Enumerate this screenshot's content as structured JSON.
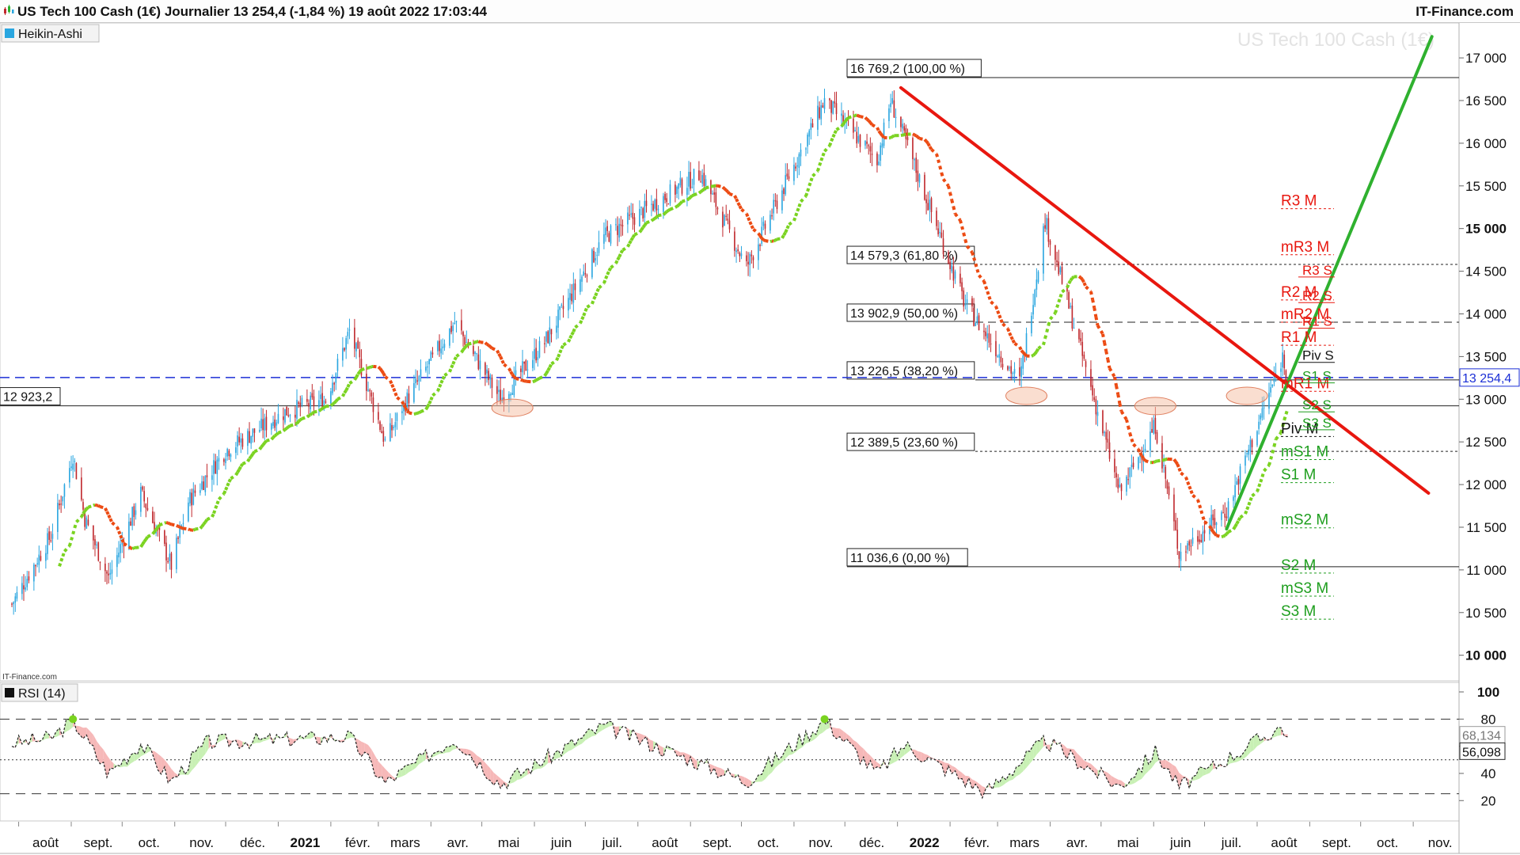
{
  "header": {
    "title": "US Tech 100 Cash (1€) Journalier 13 254,4 (-1,84 %) 19 août 2022 17:03:44",
    "brand": "IT-Finance.com"
  },
  "panels": {
    "price_legend": "Heikin-Ashi",
    "watermark": "US Tech 100 Cash (1€)",
    "rsi_legend": "RSI (14)",
    "source": "IT-Finance.com",
    "crosshair_label": "12 923,2",
    "last_price_label": "13 254,4"
  },
  "colors": {
    "up": "#2aa6e0",
    "down": "#c0282d",
    "support": "#1e9e1e",
    "resistance": "#e8170f",
    "trend_green": "#2fb12f",
    "trend_red": "#e8170f",
    "last_price": "#1b2fd6",
    "ma_green": "#7ad320",
    "ma_red": "#ec4a12",
    "rsi_pos": "#c8f0b4",
    "rsi_neg": "#f6b8b8"
  },
  "chart_data": [
    {
      "type": "candlestick",
      "name": "Heikin-Ashi",
      "ylim": [
        9700,
        17400
      ],
      "y_ticks": [
        10000,
        10500,
        11000,
        11500,
        12000,
        12500,
        13000,
        13500,
        14000,
        14500,
        15000,
        15500,
        16000,
        16500,
        17000
      ],
      "y_tick_labels": [
        "10 000",
        "10 500",
        "11 000",
        "11 500",
        "12 000",
        "12 500",
        "13 000",
        "13 500",
        "14 000",
        "14 500",
        "15 000",
        "15 500",
        "16 000",
        "16 500",
        "17 000"
      ],
      "bold_ticks": [
        10000,
        15000
      ],
      "x_axis_labels": [
        {
          "label": "août",
          "date": "2020-08-01"
        },
        {
          "label": "sept.",
          "date": "2020-09-01"
        },
        {
          "label": "oct.",
          "date": "2020-10-01"
        },
        {
          "label": "nov.",
          "date": "2020-11-01"
        },
        {
          "label": "déc.",
          "date": "2020-12-01"
        },
        {
          "label": "2021",
          "date": "2021-01-01",
          "bold": true
        },
        {
          "label": "févr.",
          "date": "2021-02-01"
        },
        {
          "label": "mars",
          "date": "2021-03-01"
        },
        {
          "label": "avr.",
          "date": "2021-04-01"
        },
        {
          "label": "mai",
          "date": "2021-05-01"
        },
        {
          "label": "juin",
          "date": "2021-06-01"
        },
        {
          "label": "juil.",
          "date": "2021-07-01"
        },
        {
          "label": "août",
          "date": "2021-08-01"
        },
        {
          "label": "sept.",
          "date": "2021-09-01"
        },
        {
          "label": "oct.",
          "date": "2021-10-01"
        },
        {
          "label": "nov.",
          "date": "2021-11-01"
        },
        {
          "label": "déc.",
          "date": "2021-12-01"
        },
        {
          "label": "2022",
          "date": "2022-01-01",
          "bold": true
        },
        {
          "label": "févr.",
          "date": "2022-02-01"
        },
        {
          "label": "mars",
          "date": "2022-03-01"
        },
        {
          "label": "avr.",
          "date": "2022-04-01"
        },
        {
          "label": "mai",
          "date": "2022-05-01"
        },
        {
          "label": "juin",
          "date": "2022-06-01"
        },
        {
          "label": "juil.",
          "date": "2022-07-01"
        },
        {
          "label": "août",
          "date": "2022-08-01"
        },
        {
          "label": "sept.",
          "date": "2022-09-01"
        },
        {
          "label": "oct.",
          "date": "2022-10-01"
        },
        {
          "label": "nov.",
          "date": "2022-11-01"
        }
      ],
      "price_path": [
        {
          "date": "2020-07-28",
          "close": 10600
        },
        {
          "date": "2020-08-20",
          "close": 11400
        },
        {
          "date": "2020-09-02",
          "close": 12350
        },
        {
          "date": "2020-09-09",
          "close": 11600
        },
        {
          "date": "2020-09-23",
          "close": 10900
        },
        {
          "date": "2020-10-12",
          "close": 11900
        },
        {
          "date": "2020-10-30",
          "close": 11050
        },
        {
          "date": "2020-11-09",
          "close": 11800
        },
        {
          "date": "2020-12-01",
          "close": 12400
        },
        {
          "date": "2021-01-05",
          "close": 12850
        },
        {
          "date": "2021-01-29",
          "close": 13000
        },
        {
          "date": "2021-02-12",
          "close": 13800
        },
        {
          "date": "2021-03-05",
          "close": 12500
        },
        {
          "date": "2021-03-18",
          "close": 13000
        },
        {
          "date": "2021-04-15",
          "close": 13900
        },
        {
          "date": "2021-05-12",
          "close": 13000
        },
        {
          "date": "2021-06-08",
          "close": 13700
        },
        {
          "date": "2021-07-12",
          "close": 14900
        },
        {
          "date": "2021-09-07",
          "close": 15650
        },
        {
          "date": "2021-10-04",
          "close": 14550
        },
        {
          "date": "2021-11-19",
          "close": 16500
        },
        {
          "date": "2021-12-20",
          "close": 15800
        },
        {
          "date": "2021-12-28",
          "close": 16500
        },
        {
          "date": "2022-02-10",
          "close": 14100
        },
        {
          "date": "2022-03-14",
          "close": 13200
        },
        {
          "date": "2022-03-29",
          "close": 15100
        },
        {
          "date": "2022-05-12",
          "close": 11900
        },
        {
          "date": "2022-06-02",
          "close": 12700
        },
        {
          "date": "2022-06-16",
          "close": 11200
        },
        {
          "date": "2022-07-14",
          "close": 11700
        },
        {
          "date": "2022-08-16",
          "close": 13500
        },
        {
          "date": "2022-08-19",
          "close": 13254.4
        }
      ],
      "fibonacci": [
        {
          "label": "16 769,2 (100,00 %)",
          "value": 16769.2
        },
        {
          "label": "14 579,3 (61,80 %)",
          "value": 14579.3
        },
        {
          "label": "13 902,9 (50,00 %)",
          "value": 13902.9
        },
        {
          "label": "13 226,5 (38,20 %)",
          "value": 13226.5
        },
        {
          "label": "12 389,5 (23,60 %)",
          "value": 12389.5
        },
        {
          "label": "11 036,6 (0,00 %)",
          "value": 11036.6
        }
      ],
      "monthly_pivots": [
        {
          "label": "R3 M",
          "value": 15270,
          "kind": "resistance"
        },
        {
          "label": "mR3 M",
          "value": 14730,
          "kind": "resistance"
        },
        {
          "label": "R2 M",
          "value": 14200,
          "kind": "resistance"
        },
        {
          "label": "mR2 M",
          "value": 13940,
          "kind": "resistance"
        },
        {
          "label": "R1 M",
          "value": 13670,
          "kind": "resistance"
        },
        {
          "label": "mR1 M",
          "value": 13130,
          "kind": "resistance"
        },
        {
          "label": "Piv M",
          "value": 12600,
          "kind": "pivot"
        },
        {
          "label": "mS1 M",
          "value": 12330,
          "kind": "support"
        },
        {
          "label": "S1 M",
          "value": 12060,
          "kind": "support"
        },
        {
          "label": "mS2 M",
          "value": 11530,
          "kind": "support"
        },
        {
          "label": "S2 M",
          "value": 11000,
          "kind": "support"
        },
        {
          "label": "mS3 M",
          "value": 10730,
          "kind": "support"
        },
        {
          "label": "S3 M",
          "value": 10460,
          "kind": "support"
        }
      ],
      "weekly_pivots": [
        {
          "label": "R3 S",
          "value": 14460,
          "kind": "resistance"
        },
        {
          "label": "R2 S",
          "value": 14160,
          "kind": "resistance"
        },
        {
          "label": "R1 S",
          "value": 13860,
          "kind": "resistance"
        },
        {
          "label": "Piv S",
          "value": 13460,
          "kind": "pivot"
        },
        {
          "label": "S1 S",
          "value": 13220,
          "kind": "support"
        },
        {
          "label": "S2 S",
          "value": 12880,
          "kind": "support"
        },
        {
          "label": "S3 S",
          "value": 12670,
          "kind": "support"
        }
      ],
      "trendlines": [
        {
          "color": "red",
          "from": {
            "date": "2022-01-03",
            "value": 16650
          },
          "to": {
            "date": "2022-11-10",
            "value": 11900
          }
        },
        {
          "color": "green",
          "from": {
            "date": "2022-07-14",
            "value": 11480
          },
          "to": {
            "date": "2022-11-12",
            "value": 17250
          }
        }
      ],
      "horizontal_lines": [
        {
          "value": 12923.2,
          "label": "12 923,2",
          "style": "solid"
        },
        {
          "value": 13254.4,
          "label": "13 254,4",
          "style": "dashed",
          "color": "blue"
        }
      ],
      "support_zones": [
        {
          "date": "2021-05-19",
          "value": 12900
        },
        {
          "date": "2022-03-18",
          "value": 13040
        },
        {
          "date": "2022-06-02",
          "value": 12920
        },
        {
          "date": "2022-07-26",
          "value": 13040
        }
      ]
    },
    {
      "type": "line",
      "name": "RSI (14)",
      "ylim": [
        5,
        107
      ],
      "y_ticks": [
        20,
        40,
        60,
        80,
        100
      ],
      "y_tick_labels": [
        "20",
        "40",
        "60",
        "80",
        "100"
      ],
      "levels": [
        80,
        50,
        25
      ],
      "value_labels": [
        "68,134",
        "56,098"
      ],
      "path": [
        {
          "date": "2020-07-28",
          "value": 62
        },
        {
          "date": "2020-08-20",
          "value": 66
        },
        {
          "date": "2020-09-02",
          "value": 79
        },
        {
          "date": "2020-09-23",
          "value": 40
        },
        {
          "date": "2020-10-12",
          "value": 62
        },
        {
          "date": "2020-10-30",
          "value": 34
        },
        {
          "date": "2020-11-20",
          "value": 63
        },
        {
          "date": "2021-01-05",
          "value": 65
        },
        {
          "date": "2021-02-12",
          "value": 67
        },
        {
          "date": "2021-03-05",
          "value": 33
        },
        {
          "date": "2021-04-15",
          "value": 66
        },
        {
          "date": "2021-05-12",
          "value": 32
        },
        {
          "date": "2021-07-12",
          "value": 75
        },
        {
          "date": "2021-10-04",
          "value": 34
        },
        {
          "date": "2021-11-19",
          "value": 79
        },
        {
          "date": "2021-12-20",
          "value": 40
        },
        {
          "date": "2022-01-05",
          "value": 61
        },
        {
          "date": "2022-02-22",
          "value": 26
        },
        {
          "date": "2022-03-29",
          "value": 64
        },
        {
          "date": "2022-05-12",
          "value": 30
        },
        {
          "date": "2022-06-02",
          "value": 56
        },
        {
          "date": "2022-06-16",
          "value": 30
        },
        {
          "date": "2022-08-16",
          "value": 75
        },
        {
          "date": "2022-08-19",
          "value": 66
        }
      ]
    }
  ]
}
